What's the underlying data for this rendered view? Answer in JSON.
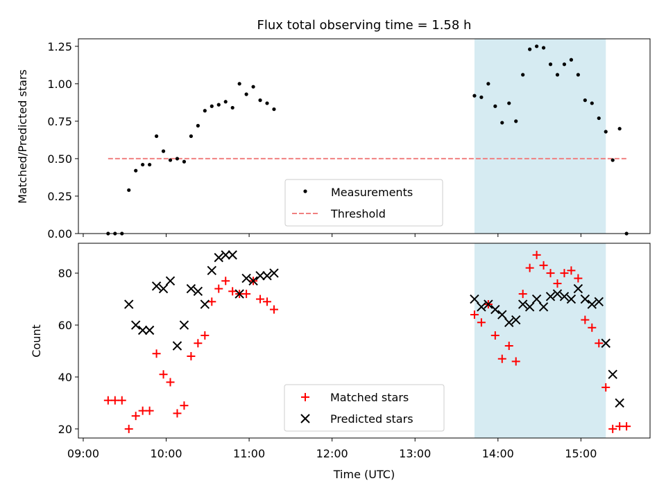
{
  "figure": {
    "title": "Flux total observing time = 1.58 h",
    "xlabel": "Time (UTC)"
  },
  "colors": {
    "measurement": "#000000",
    "threshold": "#f08080",
    "matched": "#ff0000",
    "predicted": "#000000",
    "highlight": "#add8e6"
  },
  "chart_data": [
    {
      "type": "scatter",
      "ylabel": "Matched/Predicted stars",
      "xlim": [
        "09:00",
        "15:50"
      ],
      "ylim": [
        0,
        1.3
      ],
      "yticks": [
        "0.00",
        "0.25",
        "0.50",
        "0.75",
        "1.00",
        "1.25"
      ],
      "xticks": [
        "09:00",
        "10:00",
        "11:00",
        "12:00",
        "13:00",
        "14:00",
        "15:00"
      ],
      "shaded_span": [
        "13:43",
        "15:18"
      ],
      "threshold": {
        "name": "Threshold",
        "y": 0.5,
        "x_range": [
          "09:18",
          "15:33"
        ]
      },
      "legend": {
        "position": "lower center",
        "entries": [
          "Measurements",
          "Threshold"
        ]
      },
      "series": [
        {
          "name": "Measurements",
          "marker": "dot",
          "x": [
            "09:18",
            "09:23",
            "09:28",
            "09:33",
            "09:38",
            "09:43",
            "09:48",
            "09:53",
            "09:58",
            "10:03",
            "10:08",
            "10:13",
            "10:18",
            "10:23",
            "10:28",
            "10:33",
            "10:38",
            "10:43",
            "10:48",
            "10:53",
            "10:58",
            "11:03",
            "11:08",
            "11:13",
            "11:18",
            "13:43",
            "13:48",
            "13:53",
            "13:58",
            "14:03",
            "14:08",
            "14:13",
            "14:18",
            "14:23",
            "14:28",
            "14:33",
            "14:38",
            "14:43",
            "14:48",
            "14:53",
            "14:58",
            "15:03",
            "15:08",
            "15:13",
            "15:18",
            "15:23",
            "15:28",
            "15:33"
          ],
          "y": [
            0.0,
            0.0,
            0.0,
            0.29,
            0.42,
            0.46,
            0.46,
            0.65,
            0.55,
            0.49,
            0.5,
            0.48,
            0.65,
            0.72,
            0.82,
            0.85,
            0.86,
            0.88,
            0.84,
            1.0,
            0.93,
            0.98,
            0.89,
            0.87,
            0.83,
            0.92,
            0.91,
            1.0,
            0.85,
            0.74,
            0.87,
            0.75,
            1.06,
            1.23,
            1.25,
            1.24,
            1.13,
            1.06,
            1.13,
            1.16,
            1.06,
            0.89,
            0.87,
            0.77,
            0.68,
            0.49,
            0.7,
            0.0
          ]
        }
      ]
    },
    {
      "type": "scatter",
      "ylabel": "Count",
      "xlim": [
        "09:00",
        "15:50"
      ],
      "ylim": [
        16.5,
        91.5
      ],
      "yticks": [
        "20",
        "40",
        "60",
        "80"
      ],
      "xticks": [
        "09:00",
        "10:00",
        "11:00",
        "12:00",
        "13:00",
        "14:00",
        "15:00"
      ],
      "shaded_span": [
        "13:43",
        "15:18"
      ],
      "legend": {
        "position": "lower center",
        "entries": [
          "Matched stars",
          "Predicted stars"
        ]
      },
      "series": [
        {
          "name": "Matched stars",
          "marker": "plus",
          "x": [
            "09:18",
            "09:23",
            "09:28",
            "09:33",
            "09:38",
            "09:43",
            "09:48",
            "09:53",
            "09:58",
            "10:03",
            "10:08",
            "10:13",
            "10:18",
            "10:23",
            "10:28",
            "10:33",
            "10:38",
            "10:43",
            "10:48",
            "10:53",
            "10:58",
            "11:03",
            "11:08",
            "11:13",
            "11:18",
            "13:43",
            "13:48",
            "13:53",
            "13:58",
            "14:03",
            "14:08",
            "14:13",
            "14:18",
            "14:23",
            "14:28",
            "14:33",
            "14:38",
            "14:43",
            "14:48",
            "14:53",
            "14:58",
            "15:03",
            "15:08",
            "15:13",
            "15:18",
            "15:23",
            "15:28",
            "15:33"
          ],
          "y": [
            31,
            31,
            31,
            20,
            25,
            27,
            27,
            49,
            41,
            38,
            26,
            29,
            48,
            53,
            56,
            69,
            74,
            77,
            73,
            72,
            72,
            77,
            70,
            69,
            66,
            64,
            61,
            68,
            56,
            47,
            52,
            46,
            72,
            82,
            87,
            83,
            80,
            76,
            80,
            81,
            78,
            62,
            59,
            53,
            36,
            20,
            21,
            21
          ]
        },
        {
          "name": "Predicted stars",
          "marker": "x",
          "x": [
            "09:33",
            "09:38",
            "09:43",
            "09:48",
            "09:53",
            "09:58",
            "10:03",
            "10:08",
            "10:13",
            "10:18",
            "10:23",
            "10:28",
            "10:33",
            "10:38",
            "10:43",
            "10:48",
            "10:53",
            "10:58",
            "11:03",
            "11:08",
            "11:13",
            "11:18",
            "13:43",
            "13:48",
            "13:53",
            "13:58",
            "14:03",
            "14:08",
            "14:13",
            "14:18",
            "14:23",
            "14:28",
            "14:33",
            "14:38",
            "14:43",
            "14:48",
            "14:53",
            "14:58",
            "15:03",
            "15:08",
            "15:13",
            "15:18",
            "15:23",
            "15:28"
          ],
          "y": [
            68,
            60,
            58,
            58,
            75,
            74,
            77,
            52,
            60,
            74,
            73,
            68,
            81,
            86,
            87,
            87,
            72,
            78,
            77,
            79,
            79,
            80,
            70,
            67,
            68,
            66,
            64,
            61,
            62,
            68,
            67,
            70,
            67,
            71,
            72,
            71,
            70,
            74,
            70,
            68,
            69,
            53,
            41,
            30
          ]
        }
      ]
    }
  ]
}
